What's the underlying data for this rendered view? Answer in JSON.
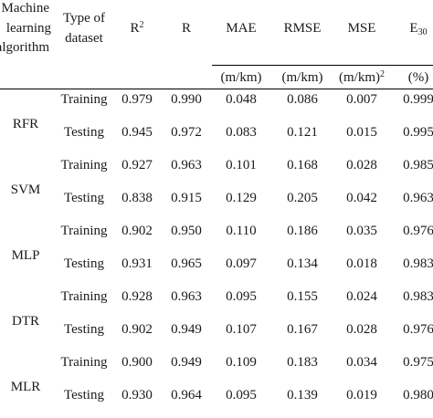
{
  "header": {
    "algorithm": [
      "Machine",
      "learning",
      "algorithm"
    ],
    "dataset": [
      "Type of",
      "dataset"
    ],
    "r2": {
      "base": "R",
      "sup": "2"
    },
    "r": "R",
    "mae": "MAE",
    "rmse": "RMSE",
    "mse": "MSE",
    "e30": {
      "base": "E",
      "sub": "30"
    }
  },
  "units": {
    "mae": "(m/km)",
    "rmse": "(m/km)",
    "mse": {
      "base": "(m/km)",
      "sup": "2"
    },
    "e30": "(%)"
  },
  "groups": [
    {
      "algorithm": "RFR",
      "rows": [
        {
          "dataset": "Training",
          "values": [
            "0.979",
            "0.990",
            "0.048",
            "0.086",
            "0.007",
            "0.999"
          ]
        },
        {
          "dataset": "Testing",
          "values": [
            "0.945",
            "0.972",
            "0.083",
            "0.121",
            "0.015",
            "0.995"
          ]
        }
      ]
    },
    {
      "algorithm": "SVM",
      "rows": [
        {
          "dataset": "Training",
          "values": [
            "0.927",
            "0.963",
            "0.101",
            "0.168",
            "0.028",
            "0.985"
          ]
        },
        {
          "dataset": "Testing",
          "values": [
            "0.838",
            "0.915",
            "0.129",
            "0.205",
            "0.042",
            "0.963"
          ]
        }
      ]
    },
    {
      "algorithm": "MLP",
      "rows": [
        {
          "dataset": "Training",
          "values": [
            "0.902",
            "0.950",
            "0.110",
            "0.186",
            "0.035",
            "0.976"
          ]
        },
        {
          "dataset": "Testing",
          "values": [
            "0.931",
            "0.965",
            "0.097",
            "0.134",
            "0.018",
            "0.983"
          ]
        }
      ]
    },
    {
      "algorithm": "DTR",
      "rows": [
        {
          "dataset": "Training",
          "values": [
            "0.928",
            "0.963",
            "0.095",
            "0.155",
            "0.024",
            "0.983"
          ]
        },
        {
          "dataset": "Testing",
          "values": [
            "0.902",
            "0.949",
            "0.107",
            "0.167",
            "0.028",
            "0.976"
          ]
        }
      ]
    },
    {
      "algorithm": "MLR",
      "rows": [
        {
          "dataset": "Training",
          "values": [
            "0.900",
            "0.949",
            "0.109",
            "0.183",
            "0.034",
            "0.975"
          ]
        },
        {
          "dataset": "Testing",
          "values": [
            "0.930",
            "0.964",
            "0.095",
            "0.139",
            "0.019",
            "0.980"
          ]
        }
      ]
    }
  ]
}
